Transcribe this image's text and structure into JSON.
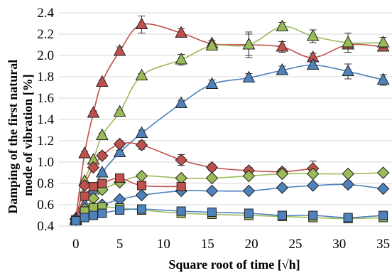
{
  "chart_data": {
    "type": "line",
    "title": "",
    "xlabel": "Square root of time [√h]",
    "ylabel": [
      "Damping of the first natural",
      "mode of vibration [%]"
    ],
    "xlim": [
      -2,
      36
    ],
    "ylim": [
      0.4,
      2.4
    ],
    "xticks": [
      0,
      5,
      10,
      15,
      20,
      25,
      30,
      35
    ],
    "yticks": [
      0.4,
      0.6,
      0.8,
      1.0,
      1.2,
      1.4,
      1.6,
      1.8,
      2.0,
      2.2,
      2.4
    ],
    "ytick_labels": [
      "0.4",
      "0.6",
      "0.8",
      "1.0",
      "1.2",
      "1.4",
      "1.6",
      "1.8",
      "2.0",
      "2.2",
      "2.4"
    ],
    "grid": "horizontal",
    "legend": "none",
    "series": [
      {
        "marker": "triangle",
        "color": "#c0504d",
        "marker_fill": "#c0504d",
        "x": [
          0,
          1,
          2,
          3,
          5,
          7.5,
          12,
          15.5,
          19.7,
          23.5,
          27,
          31,
          35
        ],
        "y": [
          0.47,
          1.08,
          1.46,
          1.75,
          2.04,
          2.29,
          2.21,
          2.11,
          2.1,
          2.08,
          1.98,
          2.1,
          2.08
        ],
        "err": [
          0.02,
          0.02,
          0.02,
          0.02,
          0.04,
          0.08,
          0.04,
          0.03,
          0.1,
          0.05,
          0.04,
          0.02,
          0.03
        ]
      },
      {
        "marker": "triangle",
        "color": "#9bbb59",
        "marker_fill": "#9bbb59",
        "x": [
          0,
          1,
          2,
          3,
          5,
          7.5,
          12,
          15.5,
          19.7,
          23.5,
          27,
          31,
          35
        ],
        "y": [
          0.45,
          0.82,
          1.02,
          1.25,
          1.47,
          1.81,
          1.96,
          2.09,
          2.1,
          2.27,
          2.18,
          2.12,
          2.12
        ],
        "err": [
          0.01,
          0.01,
          0.01,
          0.02,
          0.02,
          0.02,
          0.05,
          0.03,
          0.12,
          0.04,
          0.06,
          0.09,
          0.05
        ]
      },
      {
        "marker": "triangle",
        "color": "#4f81bd",
        "marker_fill": "#4f81bd",
        "x": [
          0,
          1,
          2,
          3,
          5,
          7.5,
          12,
          15.5,
          19.7,
          23.5,
          27,
          31,
          35
        ],
        "y": [
          0.46,
          0.6,
          0.74,
          0.9,
          1.09,
          1.27,
          1.55,
          1.73,
          1.79,
          1.86,
          1.91,
          1.85,
          1.77
        ],
        "err": [
          0.01,
          0.01,
          0.01,
          0.02,
          0.02,
          0.03,
          0.03,
          0.04,
          0.04,
          0.04,
          0.04,
          0.07,
          0.05
        ]
      },
      {
        "marker": "diamond",
        "color": "#c0504d",
        "marker_fill": "#c0504d",
        "x": [
          0,
          1,
          2,
          3,
          5,
          7.5,
          12,
          15.5,
          19.7,
          23.5,
          27
        ],
        "y": [
          0.47,
          0.78,
          0.95,
          1.06,
          1.17,
          1.16,
          1.02,
          0.95,
          0.92,
          0.91,
          0.94
        ],
        "err": [
          0.01,
          0.02,
          0.02,
          0.03,
          0.03,
          0.04,
          0.05,
          0.03,
          0.03,
          0.03,
          0.07
        ]
      },
      {
        "marker": "diamond",
        "color": "#9bbb59",
        "marker_fill": "#9bbb59",
        "x": [
          0,
          1,
          2,
          3,
          5,
          7.5,
          12,
          15.5,
          19.7,
          23.5,
          27,
          31,
          35
        ],
        "y": [
          0.46,
          0.56,
          0.66,
          0.74,
          0.81,
          0.87,
          0.85,
          0.85,
          0.87,
          0.89,
          0.89,
          0.89,
          0.9
        ],
        "err": [
          0.01,
          0.01,
          0.01,
          0.01,
          0.01,
          0.02,
          0.02,
          0.02,
          0.02,
          0.02,
          0.02,
          0.02,
          0.02
        ]
      },
      {
        "marker": "diamond",
        "color": "#4f81bd",
        "marker_fill": "#4f81bd",
        "x": [
          0,
          1,
          2,
          3,
          5,
          7.5,
          12,
          15.5,
          19.7,
          23.5,
          27,
          31,
          35
        ],
        "y": [
          0.46,
          0.53,
          0.57,
          0.6,
          0.65,
          0.69,
          0.73,
          0.73,
          0.73,
          0.76,
          0.78,
          0.79,
          0.75
        ],
        "err": [
          0.01,
          0.01,
          0.01,
          0.01,
          0.01,
          0.02,
          0.02,
          0.02,
          0.02,
          0.02,
          0.02,
          0.03,
          0.02
        ]
      },
      {
        "marker": "square",
        "color": "#c0504d",
        "marker_fill": "#c0504d",
        "x": [
          0,
          1,
          2,
          3,
          5,
          7.5,
          12
        ],
        "y": [
          0.46,
          0.68,
          0.77,
          0.8,
          0.85,
          0.78,
          0.77
        ],
        "err": [
          0.01,
          0.02,
          0.02,
          0.02,
          0.03,
          0.02,
          0.02
        ]
      },
      {
        "marker": "square",
        "color": "#9bbb59",
        "marker_fill": "#9bbb59",
        "x": [
          0,
          1,
          2,
          3,
          5,
          7.5,
          12,
          15.5,
          19.7,
          23.5,
          27,
          31,
          35
        ],
        "y": [
          0.45,
          0.54,
          0.57,
          0.58,
          0.57,
          0.55,
          0.52,
          0.51,
          0.5,
          0.49,
          0.48,
          0.47,
          0.48
        ],
        "err": [
          0.01,
          0.01,
          0.01,
          0.01,
          0.01,
          0.01,
          0.01,
          0.01,
          0.01,
          0.01,
          0.01,
          0.01,
          0.01
        ]
      },
      {
        "marker": "square",
        "color": "#4f81bd",
        "marker_fill": "#4f81bd",
        "x": [
          0,
          1,
          2,
          3,
          5,
          7.5,
          12,
          15.5,
          19.7,
          23.5,
          27,
          31,
          35
        ],
        "y": [
          0.45,
          0.48,
          0.5,
          0.52,
          0.55,
          0.56,
          0.54,
          0.53,
          0.52,
          0.5,
          0.5,
          0.48,
          0.5
        ],
        "err": [
          0.01,
          0.01,
          0.01,
          0.01,
          0.01,
          0.01,
          0.01,
          0.01,
          0.01,
          0.01,
          0.01,
          0.01,
          0.01
        ]
      }
    ]
  }
}
